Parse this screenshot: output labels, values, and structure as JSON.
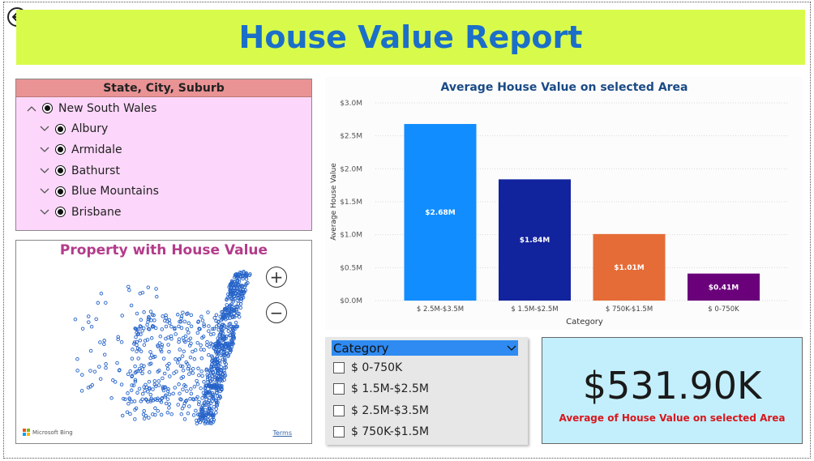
{
  "header": {
    "title": "House Value Report",
    "back_icon": "back-arrow-icon"
  },
  "slicer": {
    "header": "State, City, Suburb",
    "items": [
      {
        "label": "New South Wales",
        "level": 0,
        "expanded": true
      },
      {
        "label": "Albury",
        "level": 1,
        "expanded": false
      },
      {
        "label": "Armidale",
        "level": 1,
        "expanded": false
      },
      {
        "label": "Bathurst",
        "level": 1,
        "expanded": false
      },
      {
        "label": "Blue Mountains",
        "level": 1,
        "expanded": false
      },
      {
        "label": "Brisbane",
        "level": 1,
        "expanded": false
      }
    ]
  },
  "map": {
    "title": "Property with House Value",
    "zoom_in_label": "+",
    "zoom_out_label": "−",
    "attribution": "Microsoft Bing",
    "terms_label": "Terms",
    "point_color": "#2563c9"
  },
  "chart_data": {
    "type": "bar",
    "title": "Average House Value on selected Area",
    "xlabel": "Category",
    "ylabel": "Average House Value",
    "categories": [
      "$ 2.5M-$3.5M",
      "$ 1.5M-$2.5M",
      "$ 750K-$1.5M",
      "$ 0-750K"
    ],
    "values": [
      2.68,
      1.84,
      1.01,
      0.41
    ],
    "value_labels": [
      "$2.68M",
      "$1.84M",
      "$1.01M",
      "$0.41M"
    ],
    "colors": [
      "#118dff",
      "#12239e",
      "#e66c37",
      "#6b007b"
    ],
    "ylim": [
      0,
      3.0
    ],
    "yticks": [
      0,
      0.5,
      1.0,
      1.5,
      2.0,
      2.5,
      3.0
    ],
    "ytick_labels": [
      "$0.0M",
      "$0.5M",
      "$1.0M",
      "$1.5M",
      "$2.0M",
      "$2.5M",
      "$3.0M"
    ],
    "grid": true
  },
  "category_slicer": {
    "header": "Category",
    "options": [
      {
        "label": "$ 0-750K",
        "checked": false
      },
      {
        "label": "$ 1.5M-$2.5M",
        "checked": false
      },
      {
        "label": "$ 2.5M-$3.5M",
        "checked": false
      },
      {
        "label": "$ 750K-$1.5M",
        "checked": false
      }
    ]
  },
  "kpi": {
    "value": "$531.90K",
    "label": "Average of House Value on selected Area",
    "label_color": "#d8171d"
  }
}
